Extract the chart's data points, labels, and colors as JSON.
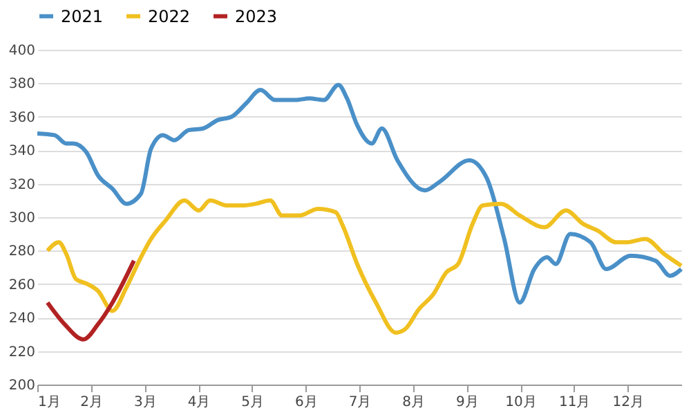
{
  "chart_data": {
    "type": "line",
    "xlim": [
      1,
      13
    ],
    "xticks": [
      {
        "value": 1,
        "label": "1月"
      },
      {
        "value": 2,
        "label": "2月"
      },
      {
        "value": 3,
        "label": "3月"
      },
      {
        "value": 4,
        "label": "4月"
      },
      {
        "value": 5,
        "label": "5月"
      },
      {
        "value": 6,
        "label": "6月"
      },
      {
        "value": 7,
        "label": "7月"
      },
      {
        "value": 8,
        "label": "8月"
      },
      {
        "value": 9,
        "label": "9月"
      },
      {
        "value": 10,
        "label": "10月"
      },
      {
        "value": 11,
        "label": "11月"
      },
      {
        "value": 12,
        "label": "12月"
      }
    ],
    "ylim": [
      200,
      400
    ],
    "yticks": [
      200,
      220,
      240,
      260,
      280,
      300,
      320,
      340,
      360,
      380,
      400
    ],
    "grid": "y",
    "legend": "top",
    "marker": "none",
    "line_style": "solid",
    "series": [
      {
        "name": "2021",
        "color": "#4a90c8",
        "x": [
          1.0,
          1.32,
          1.54,
          1.67,
          1.91,
          2.13,
          2.4,
          2.66,
          2.93,
          3.12,
          3.34,
          3.55,
          3.82,
          4.09,
          4.36,
          4.62,
          4.89,
          5.16,
          5.43,
          5.81,
          6.07,
          6.34,
          6.61,
          6.77,
          6.96,
          7.23,
          7.42,
          7.71,
          8.22,
          8.49,
          9.05,
          9.38,
          9.7,
          9.99,
          10.26,
          10.5,
          10.66,
          10.93,
          11.31,
          11.6,
          12.06,
          12.52,
          12.79,
          13.0
        ],
        "values": [
          350,
          349,
          344,
          344,
          339,
          325,
          317,
          308,
          314,
          341,
          349,
          346,
          352,
          353,
          358,
          360,
          368,
          376,
          370,
          370,
          371,
          370,
          379,
          371,
          355,
          344,
          353,
          334,
          316,
          321,
          334,
          323,
          287,
          249,
          269,
          276,
          272,
          290,
          285,
          269,
          277,
          274,
          265,
          269
        ]
      },
      {
        "name": "2022",
        "color": "#f0c020",
        "x": [
          1.19,
          1.4,
          1.54,
          1.72,
          1.94,
          2.13,
          2.4,
          2.66,
          2.93,
          3.12,
          3.39,
          3.74,
          4.01,
          4.22,
          4.54,
          4.81,
          5.07,
          5.34,
          5.56,
          5.89,
          6.23,
          6.56,
          6.69,
          6.96,
          7.31,
          7.68,
          7.85,
          8.11,
          8.38,
          8.62,
          8.84,
          9.11,
          9.3,
          9.64,
          9.99,
          10.45,
          10.85,
          11.17,
          11.44,
          11.79,
          11.98,
          12.33,
          12.68,
          13.0
        ],
        "values": [
          280,
          285,
          278,
          263,
          260,
          256,
          244,
          258,
          276,
          287,
          298,
          310,
          304,
          310,
          307,
          307,
          308,
          310,
          301,
          301,
          305,
          303,
          295,
          272,
          249,
          231,
          233,
          245,
          254,
          267,
          272,
          296,
          307,
          308,
          301,
          294,
          304,
          296,
          292,
          285,
          285,
          287,
          278,
          271
        ]
      },
      {
        "name": "2023",
        "color": "#b22222",
        "x": [
          1.19,
          1.51,
          1.86,
          2.13,
          2.4,
          2.8
        ],
        "values": [
          249,
          236,
          227,
          236,
          249,
          274
        ]
      }
    ]
  }
}
